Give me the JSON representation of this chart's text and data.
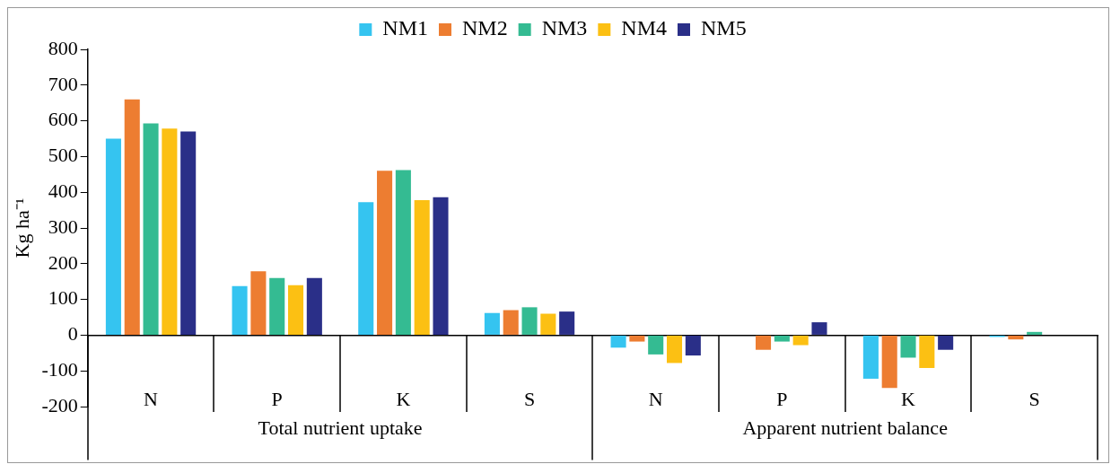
{
  "chart_data": {
    "type": "bar",
    "categories": [
      "N",
      "P",
      "K",
      "S",
      "N",
      "P",
      "K",
      "S"
    ],
    "ylabel": "Kg ha⁻¹",
    "annotations": [
      "Total nutrient uptake",
      "Apparent nutrient balance"
    ],
    "ylim": [
      -200,
      800
    ],
    "yticks": [
      -200,
      -100,
      0,
      100,
      200,
      300,
      400,
      500,
      600,
      700,
      800
    ],
    "legend": "top",
    "series": [
      {
        "name": "NM1",
        "color": "#35c4f0",
        "values": [
          550,
          137,
          372,
          62,
          -35,
          0,
          -122,
          -5
        ]
      },
      {
        "name": "NM2",
        "color": "#ed7d31",
        "values": [
          660,
          179,
          460,
          70,
          -18,
          -41,
          -148,
          -12
        ]
      },
      {
        "name": "NM3",
        "color": "#34bb92",
        "values": [
          593,
          160,
          462,
          78,
          -54,
          -18,
          -63,
          9
        ]
      },
      {
        "name": "NM4",
        "color": "#fcc013",
        "values": [
          578,
          140,
          378,
          60,
          -78,
          -28,
          -92,
          0
        ]
      },
      {
        "name": "NM5",
        "color": "#2a2f88",
        "values": [
          570,
          160,
          386,
          66,
          -57,
          36,
          -41,
          0
        ]
      }
    ]
  }
}
